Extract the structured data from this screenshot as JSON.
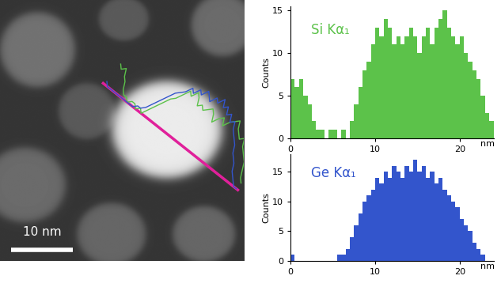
{
  "image": {
    "scale_bar": {
      "label": "10 nm",
      "length": 10
    }
  },
  "chart_data": [
    {
      "type": "histogram",
      "title": "Si Kα₁",
      "color": "#5cc24a",
      "x_label": "nm",
      "y_label": "Counts",
      "bins": [
        0,
        0.5,
        1,
        1.5,
        2,
        2.5,
        3,
        3.5,
        4,
        4.5,
        5,
        5.5,
        6,
        6.5,
        7,
        7.5,
        8,
        8.5,
        9,
        9.5,
        10,
        10.5,
        11,
        11.5,
        12,
        12.5,
        13,
        13.5,
        14,
        14.5,
        15,
        15.5,
        16,
        16.5,
        17,
        17.5,
        18,
        18.5,
        19,
        19.5,
        20,
        20.5,
        21,
        21.5,
        22,
        22.5,
        23,
        23.5,
        24
      ],
      "counts": [
        7,
        6,
        7,
        5,
        4,
        2,
        1,
        1,
        0,
        1,
        1,
        0,
        1,
        0,
        2,
        4,
        6,
        8,
        9,
        11,
        13,
        12,
        14,
        13,
        11,
        12,
        11,
        12,
        13,
        12,
        10,
        12,
        13,
        11,
        13,
        14,
        15,
        13,
        12,
        11,
        12,
        10,
        9,
        8,
        7,
        5,
        3,
        2
      ],
      "xlim": [
        0,
        24
      ],
      "xticks": [
        0,
        10,
        20
      ],
      "ylim": [
        0,
        15.5
      ],
      "yticks": [
        0,
        5,
        10,
        15
      ]
    },
    {
      "type": "histogram",
      "title": "Ge Kα₁",
      "color": "#3355cc",
      "x_label": "nm",
      "y_label": "Counts",
      "bins": [
        0,
        0.5,
        1,
        1.5,
        2,
        2.5,
        3,
        3.5,
        4,
        4.5,
        5,
        5.5,
        6,
        6.5,
        7,
        7.5,
        8,
        8.5,
        9,
        9.5,
        10,
        10.5,
        11,
        11.5,
        12,
        12.5,
        13,
        13.5,
        14,
        14.5,
        15,
        15.5,
        16,
        16.5,
        17,
        17.5,
        18,
        18.5,
        19,
        19.5,
        20,
        20.5,
        21,
        21.5,
        22,
        22.5,
        23,
        23.5,
        24
      ],
      "counts": [
        1,
        0,
        0,
        0,
        0,
        0,
        0,
        0,
        0,
        0,
        0,
        1,
        1,
        2,
        4,
        6,
        8,
        10,
        11,
        12,
        14,
        13,
        15,
        14,
        16,
        15,
        14,
        16,
        15,
        17,
        15,
        16,
        14,
        15,
        13,
        14,
        12,
        11,
        10,
        9,
        7,
        6,
        5,
        3,
        2,
        1,
        0,
        0
      ],
      "xlim": [
        0,
        24
      ],
      "xticks": [
        0,
        10,
        20
      ],
      "ylim": [
        0,
        18
      ],
      "yticks": [
        0,
        5,
        10,
        15
      ]
    }
  ]
}
